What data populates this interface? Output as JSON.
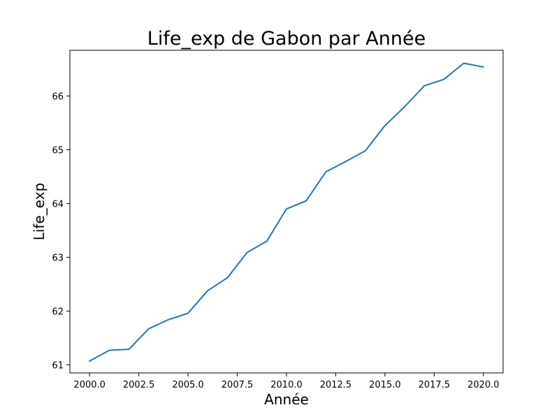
{
  "chart_data": {
    "type": "line",
    "title": "Life_exp de Gabon par Année",
    "xlabel": "Année",
    "ylabel": "Life_exp",
    "xlim": [
      1999.0,
      2021.0
    ],
    "ylim": [
      60.85,
      66.85
    ],
    "xticks": [
      2000.0,
      2002.5,
      2005.0,
      2007.5,
      2010.0,
      2012.5,
      2015.0,
      2017.5,
      2020.0
    ],
    "xtick_labels": [
      "2000.0",
      "2002.5",
      "2005.0",
      "2007.5",
      "2010.0",
      "2012.5",
      "2015.0",
      "2017.5",
      "2020.0"
    ],
    "yticks": [
      61,
      62,
      63,
      64,
      65,
      66
    ],
    "ytick_labels": [
      "61",
      "62",
      "63",
      "64",
      "65",
      "66"
    ],
    "grid": false,
    "series": [
      {
        "color": "#1f77b4",
        "x": [
          2000,
          2001,
          2002,
          2003,
          2004,
          2005,
          2006,
          2007,
          2008,
          2009,
          2010,
          2011,
          2012,
          2013,
          2014,
          2015,
          2016,
          2017,
          2018,
          2019,
          2020
        ],
        "y": [
          61.07,
          61.27,
          61.29,
          61.67,
          61.84,
          61.96,
          62.38,
          62.62,
          63.09,
          63.3,
          63.9,
          64.05,
          64.59,
          64.78,
          64.98,
          65.45,
          65.8,
          66.19,
          66.31,
          66.61,
          66.54
        ]
      }
    ]
  }
}
